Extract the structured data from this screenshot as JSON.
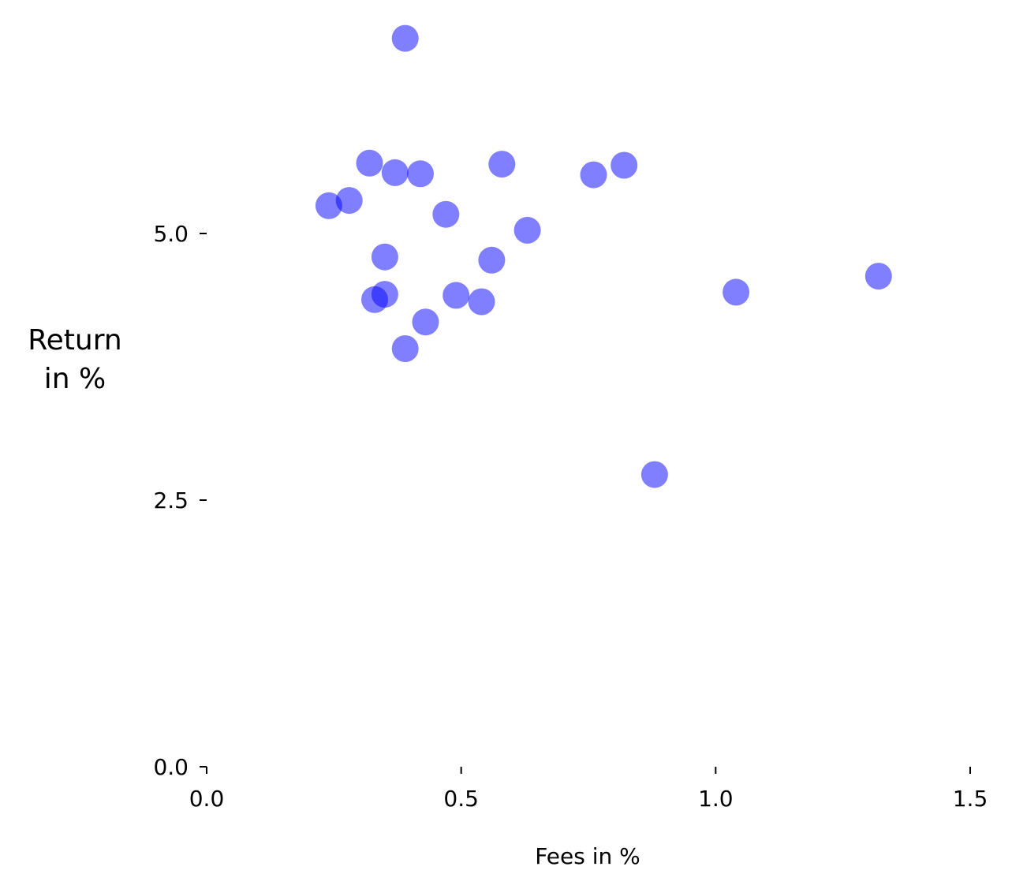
{
  "chart_data": {
    "type": "scatter",
    "title": "",
    "xlabel": "Fees in %",
    "ylabel_lines": [
      "Return",
      "in %"
    ],
    "xlim": [
      0.0,
      1.5
    ],
    "ylim": [
      0.0,
      6.7
    ],
    "x_ticks": [
      0.0,
      0.5,
      1.0,
      1.5
    ],
    "x_tick_labels": [
      "0.0",
      "0.5",
      "1.0",
      "1.5"
    ],
    "y_ticks": [
      0.0,
      2.5,
      5.0
    ],
    "y_tick_labels": [
      "0.0",
      "2.5",
      "5.0"
    ],
    "grid": false,
    "legend": "none",
    "point_color": "#0000ff",
    "point_opacity": 0.5,
    "points": [
      {
        "x": 0.39,
        "y": 6.83
      },
      {
        "x": 0.32,
        "y": 5.66
      },
      {
        "x": 0.37,
        "y": 5.57
      },
      {
        "x": 0.42,
        "y": 5.56
      },
      {
        "x": 0.58,
        "y": 5.65
      },
      {
        "x": 0.76,
        "y": 5.55
      },
      {
        "x": 0.82,
        "y": 5.64
      },
      {
        "x": 0.24,
        "y": 5.26
      },
      {
        "x": 0.28,
        "y": 5.31
      },
      {
        "x": 0.47,
        "y": 5.18
      },
      {
        "x": 0.63,
        "y": 5.03
      },
      {
        "x": 0.35,
        "y": 4.78
      },
      {
        "x": 0.56,
        "y": 4.75
      },
      {
        "x": 0.35,
        "y": 4.43
      },
      {
        "x": 0.33,
        "y": 4.38
      },
      {
        "x": 0.49,
        "y": 4.42
      },
      {
        "x": 0.54,
        "y": 4.36
      },
      {
        "x": 0.43,
        "y": 4.17
      },
      {
        "x": 0.39,
        "y": 3.92
      },
      {
        "x": 1.04,
        "y": 4.45
      },
      {
        "x": 1.32,
        "y": 4.6
      },
      {
        "x": 0.88,
        "y": 2.74
      }
    ]
  }
}
